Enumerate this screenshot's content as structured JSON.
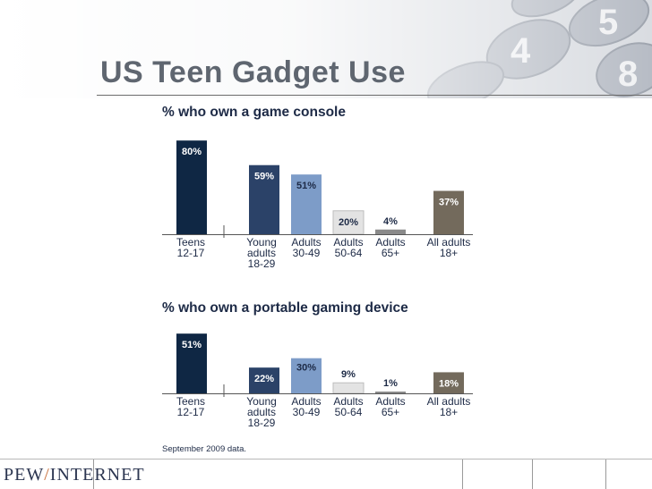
{
  "slide": {
    "title": "US Teen Gadget Use",
    "footnote": "September 2009 data.",
    "logo": {
      "left": "PEW",
      "slash": "/",
      "right": "INTERNET"
    }
  },
  "colors": {
    "teens": "#0f2744",
    "young": "#2b4268",
    "adults3049": "#7d9cc8",
    "adults5064": "#e3e3e3",
    "adults65": "#8a8a8a",
    "all": "#736a5c",
    "text": "#1d2a46"
  },
  "chart_data": [
    {
      "type": "bar",
      "title": "% who own a game console",
      "categories": [
        [
          "Teens",
          "12-17"
        ],
        [
          "Young",
          "adults",
          "18-29"
        ],
        [
          "Adults",
          "30-49"
        ],
        [
          "Adults",
          "50-64"
        ],
        [
          "Adults",
          "65+"
        ],
        [
          "All adults",
          "18+"
        ]
      ],
      "values": [
        80,
        59,
        51,
        20,
        4,
        37
      ],
      "value_labels": [
        "80%",
        "59%",
        "51%",
        "20%",
        "4%",
        "37%"
      ],
      "ylim": [
        0,
        100
      ],
      "grid": false
    },
    {
      "type": "bar",
      "title": "% who own a portable gaming device",
      "categories": [
        [
          "Teens",
          "12-17"
        ],
        [
          "Young",
          "adults",
          "18-29"
        ],
        [
          "Adults",
          "30-49"
        ],
        [
          "Adults",
          "50-64"
        ],
        [
          "Adults",
          "65+"
        ],
        [
          "All adults",
          "18+"
        ]
      ],
      "values": [
        51,
        22,
        30,
        9,
        1,
        18
      ],
      "value_labels": [
        "51%",
        "22%",
        "30%",
        "9%",
        "1%",
        "18%"
      ],
      "ylim": [
        0,
        100
      ],
      "grid": false
    }
  ]
}
